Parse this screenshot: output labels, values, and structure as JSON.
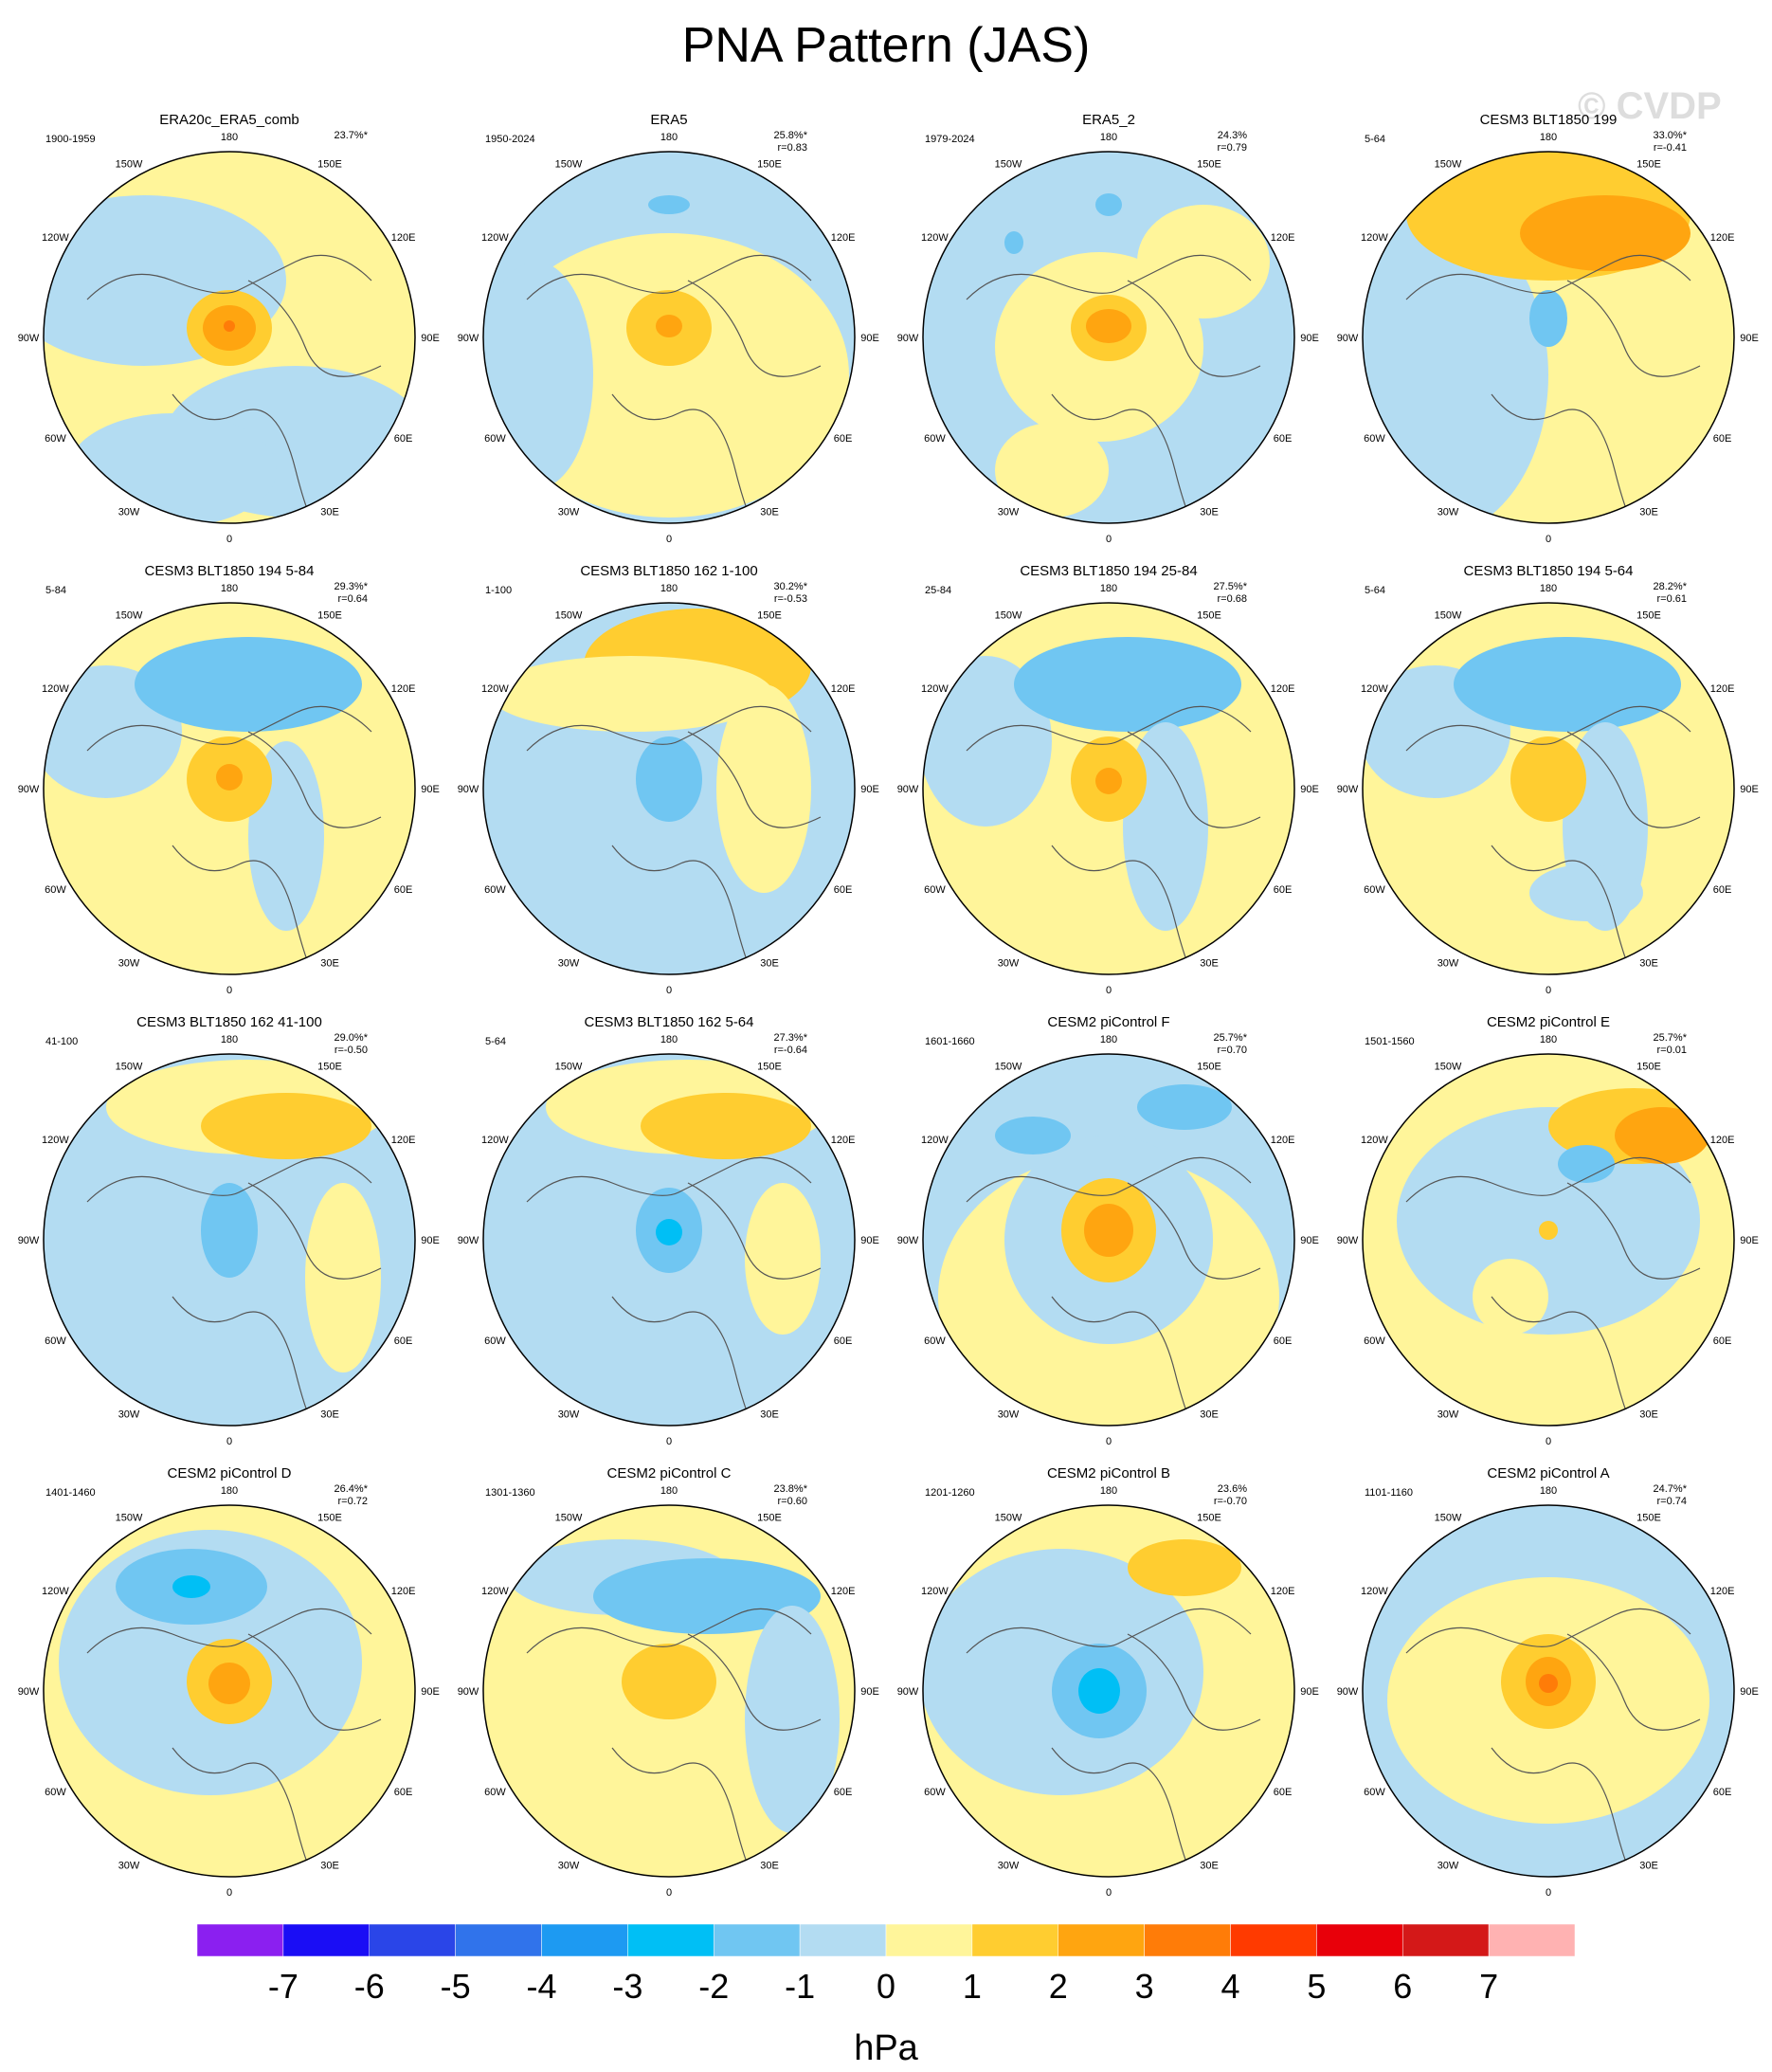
{
  "title": "PNA Pattern (JAS)",
  "watermark": "© CVDP",
  "colors": {
    "levels": [
      "#8b1ff0",
      "#1a0df5",
      "#2a45e8",
      "#3073eb",
      "#1d9af2",
      "#00bff5",
      "#70c6f2",
      "#b3dcf2",
      "#fff59a",
      "#ffcd30",
      "#ffa510",
      "#ff7c08",
      "#ff3a00",
      "#e8000a",
      "#d41818",
      "#ffb2b2"
    ],
    "map_outline": "#000000",
    "coast": "#555555"
  },
  "lon_labels": [
    "180",
    "150E",
    "120E",
    "90E",
    "60E",
    "30E",
    "0",
    "30W",
    "60W",
    "90W",
    "120W",
    "150W"
  ],
  "chart_data": {
    "type": "contour-map-grid",
    "projection": "north-polar-stereographic",
    "units": "hPa",
    "colorbar": {
      "tick_labels": [
        "-7",
        "-6",
        "-5",
        "-4",
        "-3",
        "-2",
        "-1",
        "0",
        "1",
        "2",
        "3",
        "4",
        "5",
        "6",
        "7"
      ],
      "levels": [
        -7,
        -6,
        -5,
        -4,
        -3,
        -2,
        -1,
        0,
        1,
        2,
        3,
        4,
        5,
        6,
        7
      ],
      "unit_label": "hPa"
    },
    "panels": [
      {
        "title": "ERA20c_ERA5_comb",
        "years": "1900-1959",
        "pct": "23.7%*",
        "r": ""
      },
      {
        "title": "ERA5",
        "years": "1950-2024",
        "pct": "25.8%*",
        "r": "r=0.83"
      },
      {
        "title": "ERA5_2",
        "years": "1979-2024",
        "pct": "24.3%",
        "r": "r=0.79"
      },
      {
        "title": "CESM3 BLT1850 199",
        "years": "5-64",
        "pct": "33.0%*",
        "r": "r=-0.41"
      },
      {
        "title": "CESM3 BLT1850 194 5-84",
        "years": "5-84",
        "pct": "29.3%*",
        "r": "r=0.64"
      },
      {
        "title": "CESM3 BLT1850 162 1-100",
        "years": "1-100",
        "pct": "30.2%*",
        "r": "r=-0.53"
      },
      {
        "title": "CESM3 BLT1850 194 25-84",
        "years": "25-84",
        "pct": "27.5%*",
        "r": "r=0.68"
      },
      {
        "title": "CESM3 BLT1850 194 5-64",
        "years": "5-64",
        "pct": "28.2%*",
        "r": "r=0.61"
      },
      {
        "title": "CESM3 BLT1850 162 41-100",
        "years": "41-100",
        "pct": "29.0%*",
        "r": "r=-0.50"
      },
      {
        "title": "CESM3 BLT1850 162 5-64",
        "years": "5-64",
        "pct": "27.3%*",
        "r": "r=-0.64"
      },
      {
        "title": "CESM2 piControl F",
        "years": "1601-1660",
        "pct": "25.7%*",
        "r": "r=0.70"
      },
      {
        "title": "CESM2 piControl E",
        "years": "1501-1560",
        "pct": "25.7%*",
        "r": "r=0.01"
      },
      {
        "title": "CESM2 piControl D",
        "years": "1401-1460",
        "pct": "26.4%*",
        "r": "r=0.72"
      },
      {
        "title": "CESM2 piControl C",
        "years": "1301-1360",
        "pct": "23.8%*",
        "r": "r=0.60"
      },
      {
        "title": "CESM2 piControl B",
        "years": "1201-1260",
        "pct": "23.6%",
        "r": "r=-0.70"
      },
      {
        "title": "CESM2 piControl A",
        "years": "1101-1160",
        "pct": "24.7%*",
        "r": "r=0.74"
      }
    ]
  }
}
